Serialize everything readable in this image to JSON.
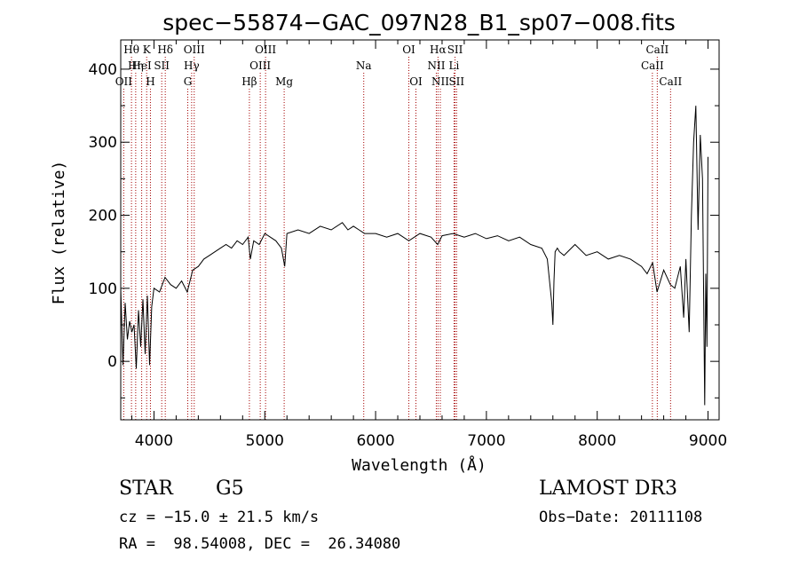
{
  "chart_data": {
    "type": "line",
    "title": "spec−55874−GAC_097N28_B1_sp07−008.fits",
    "xlabel": "Wavelength (Å)",
    "ylabel": "Flux (relative)",
    "xlim": [
      3700,
      9100
    ],
    "ylim": [
      -80,
      440
    ],
    "xticks": [
      {
        "value": 4000,
        "label": "4000"
      },
      {
        "value": 5000,
        "label": "5000"
      },
      {
        "value": 6000,
        "label": "6000"
      },
      {
        "value": 7000,
        "label": "7000"
      },
      {
        "value": 8000,
        "label": "8000"
      },
      {
        "value": 9000,
        "label": "9000"
      }
    ],
    "yticks": [
      {
        "value": 0,
        "label": "0"
      },
      {
        "value": 100,
        "label": "100"
      },
      {
        "value": 200,
        "label": "200"
      },
      {
        "value": 300,
        "label": "300"
      },
      {
        "value": 400,
        "label": "400"
      }
    ],
    "grid": false,
    "line_color": "#000000",
    "marker_color": "#a40000",
    "spectrum": {
      "x": [
        3700,
        3720,
        3740,
        3760,
        3780,
        3800,
        3820,
        3840,
        3860,
        3880,
        3900,
        3920,
        3940,
        3960,
        3980,
        4000,
        4050,
        4100,
        4150,
        4200,
        4250,
        4300,
        4350,
        4400,
        4450,
        4500,
        4550,
        4600,
        4650,
        4700,
        4750,
        4800,
        4850,
        4870,
        4900,
        4950,
        5000,
        5050,
        5100,
        5150,
        5180,
        5200,
        5300,
        5400,
        5500,
        5600,
        5700,
        5750,
        5800,
        5850,
        5900,
        6000,
        6100,
        6200,
        6300,
        6400,
        6500,
        6560,
        6600,
        6700,
        6800,
        6900,
        7000,
        7100,
        7200,
        7300,
        7400,
        7500,
        7550,
        7590,
        7600,
        7610,
        7620,
        7640,
        7660,
        7700,
        7800,
        7900,
        8000,
        8100,
        8200,
        8300,
        8400,
        8450,
        8500,
        8540,
        8600,
        8660,
        8700,
        8750,
        8780,
        8800,
        8830,
        8850,
        8870,
        8890,
        8910,
        8930,
        8950,
        8970,
        8980,
        8990,
        9000
      ],
      "y": [
        100,
        -5,
        80,
        30,
        55,
        40,
        50,
        -10,
        70,
        20,
        85,
        10,
        90,
        -5,
        75,
        100,
        95,
        115,
        105,
        100,
        110,
        95,
        125,
        130,
        140,
        145,
        150,
        155,
        160,
        155,
        165,
        160,
        170,
        140,
        165,
        160,
        175,
        170,
        165,
        155,
        130,
        175,
        180,
        175,
        185,
        180,
        190,
        180,
        185,
        180,
        175,
        175,
        170,
        175,
        165,
        175,
        170,
        160,
        172,
        175,
        170,
        175,
        168,
        172,
        165,
        170,
        160,
        155,
        140,
        80,
        50,
        110,
        150,
        155,
        150,
        145,
        160,
        145,
        150,
        140,
        145,
        140,
        130,
        120,
        135,
        95,
        125,
        105,
        100,
        130,
        60,
        140,
        40,
        200,
        300,
        350,
        180,
        310,
        250,
        -60,
        120,
        20,
        280
      ]
    },
    "lines": [
      {
        "label": "Hθ",
        "x": 3797,
        "row": 1
      },
      {
        "label": "K",
        "x": 3934,
        "row": 1
      },
      {
        "label": "Hδ",
        "x": 4102,
        "row": 1
      },
      {
        "label": "OIII",
        "x": 4363,
        "row": 1
      },
      {
        "label": "OIII",
        "x": 5007,
        "row": 1
      },
      {
        "label": "OI",
        "x": 6300,
        "row": 1
      },
      {
        "label": "Hα",
        "x": 6563,
        "row": 1
      },
      {
        "label": "SII",
        "x": 6717,
        "row": 1
      },
      {
        "label": "CaII",
        "x": 8542,
        "row": 1
      },
      {
        "label": "HeI",
        "x": 3889,
        "row": 2
      },
      {
        "label": "SII",
        "x": 4070,
        "row": 2
      },
      {
        "label": "Hη",
        "x": 3835,
        "row": 2
      },
      {
        "label": "Hγ",
        "x": 4340,
        "row": 2
      },
      {
        "label": "OIII",
        "x": 4959,
        "row": 2
      },
      {
        "label": "Na",
        "x": 5893,
        "row": 2
      },
      {
        "label": "NII",
        "x": 6548,
        "row": 2
      },
      {
        "label": "Li",
        "x": 6708,
        "row": 2
      },
      {
        "label": "CaII",
        "x": 8498,
        "row": 2
      },
      {
        "label": "OII",
        "x": 3727,
        "row": 3
      },
      {
        "label": "H",
        "x": 3968,
        "row": 3
      },
      {
        "label": "G",
        "x": 4305,
        "row": 3
      },
      {
        "label": "Hβ",
        "x": 4861,
        "row": 3
      },
      {
        "label": "Mg",
        "x": 5175,
        "row": 3
      },
      {
        "label": "OI",
        "x": 6364,
        "row": 3
      },
      {
        "label": "NII",
        "x": 6584,
        "row": 3
      },
      {
        "label": "SII",
        "x": 6731,
        "row": 3
      },
      {
        "label": "CaII",
        "x": 8662,
        "row": 3
      }
    ]
  },
  "info": {
    "object_class": "STAR",
    "subclass": "G5",
    "survey": "LAMOST DR3",
    "cz": "cz = −15.0 ± 21.5 km/s",
    "obs_date": "Obs−Date: 20111108",
    "radec": "RA =  98.54008, DEC =  26.34080"
  }
}
